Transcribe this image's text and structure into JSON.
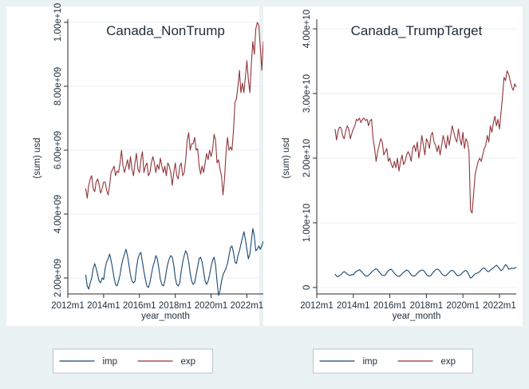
{
  "colors": {
    "imp": "#1a476f",
    "exp": "#90353b",
    "background": "#eaf2f3",
    "plot_background": "#ffffff",
    "grid": "#eaf2f3"
  },
  "legend": {
    "imp": "imp",
    "exp": "exp"
  },
  "chart_data": [
    {
      "type": "line",
      "title": "Canada_NonTrump",
      "xlabel": "year_month",
      "ylabel": "(sum) usd",
      "xlim": [
        "2012-01",
        "2022-12"
      ],
      "ylim": [
        1500000000.0,
        10000000000.0
      ],
      "x_ticks": [
        "2012-01",
        "2014-01",
        "2016-01",
        "2018-01",
        "2020-01",
        "2022-01"
      ],
      "x_tick_labels": [
        "2012m1",
        "2014m1",
        "2016m1",
        "2018m1",
        "2020m1",
        "2022m1"
      ],
      "y_ticks": [
        2000000000.0,
        4000000000.0,
        6000000000.0,
        8000000000.0,
        10000000000.0
      ],
      "y_tick_labels": [
        "2.00e+09",
        "4.00e+09",
        "6.00e+09",
        "8.00e+09",
        "1.00e+10"
      ],
      "grid": true,
      "legend_position": "bottom",
      "x_start": "2013-01",
      "x_step": "1 month",
      "series": [
        {
          "name": "imp",
          "values": [
            2100000000.0,
            1750000000.0,
            1650000000.0,
            1850000000.0,
            2000000000.0,
            2300000000.0,
            2450000000.0,
            2300000000.0,
            2100000000.0,
            1900000000.0,
            1850000000.0,
            2000000000.0,
            1950000000.0,
            2300000000.0,
            2500000000.0,
            2600000000.0,
            2750000000.0,
            2550000000.0,
            2300000000.0,
            2000000000.0,
            1800000000.0,
            1750000000.0,
            1900000000.0,
            2100000000.0,
            2400000000.0,
            2600000000.0,
            2750000000.0,
            2900000000.0,
            2700000000.0,
            2400000000.0,
            2100000000.0,
            1900000000.0,
            1850000000.0,
            1900000000.0,
            2300000000.0,
            2600000000.0,
            2750000000.0,
            2800000000.0,
            2500000000.0,
            2200000000.0,
            1950000000.0,
            1750000000.0,
            1700000000.0,
            1850000000.0,
            2100000000.0,
            2350000000.0,
            2500000000.0,
            2700000000.0,
            2600000000.0,
            2300000000.0,
            1950000000.0,
            1800000000.0,
            1750000000.0,
            1900000000.0,
            2200000000.0,
            2450000000.0,
            2600000000.0,
            2700000000.0,
            2650000000.0,
            2400000000.0,
            2000000000.0,
            1800000000.0,
            1750000000.0,
            1850000000.0,
            2200000000.0,
            2500000000.0,
            2700000000.0,
            2850000000.0,
            2750000000.0,
            2500000000.0,
            2150000000.0,
            1900000000.0,
            1800000000.0,
            1850000000.0,
            2100000000.0,
            2350000000.0,
            2600000000.0,
            2650000000.0,
            2500000000.0,
            2200000000.0,
            1900000000.0,
            1800000000.0,
            1900000000.0,
            2100000000.0,
            2350000000.0,
            2550000000.0,
            2650000000.0,
            2400000000.0,
            1900000000.0,
            1450000000.0,
            1600000000.0,
            1900000000.0,
            2100000000.0,
            2200000000.0,
            2300000000.0,
            2450000000.0,
            2700000000.0,
            2950000000.0,
            3000000000.0,
            2800000000.0,
            2500000000.0,
            2450000000.0,
            2700000000.0,
            2850000000.0,
            3050000000.0,
            3250000000.0,
            3450000000.0,
            3200000000.0,
            2900000000.0,
            2600000000.0,
            2750000000.0,
            3150000000.0,
            3550000000.0,
            3300000000.0,
            2850000000.0,
            2900000000.0,
            3000000000.0,
            2900000000.0,
            3000000000.0,
            3150000000.0
          ]
        },
        {
          "name": "exp",
          "values": [
            4800000000.0,
            4500000000.0,
            4900000000.0,
            5100000000.0,
            5200000000.0,
            4800000000.0,
            4700000000.0,
            5000000000.0,
            5100000000.0,
            4900000000.0,
            4650000000.0,
            4800000000.0,
            5000000000.0,
            5000000000.0,
            4750000000.0,
            4600000000.0,
            4900000000.0,
            5300000000.0,
            5400000000.0,
            5500000000.0,
            5200000000.0,
            5350000000.0,
            5300000000.0,
            5600000000.0,
            6000000000.0,
            5500000000.0,
            5300000000.0,
            5500000000.0,
            5700000000.0,
            5400000000.0,
            5800000000.0,
            5400000000.0,
            5200000000.0,
            5600000000.0,
            5900000000.0,
            5400000000.0,
            5300000000.0,
            5700000000.0,
            5950000000.0,
            5300000000.0,
            5500000000.0,
            5600000000.0,
            5200000000.0,
            5300000000.0,
            5600000000.0,
            5800000000.0,
            5600000000.0,
            5300000000.0,
            5550000000.0,
            5400000000.0,
            5750000000.0,
            5500000000.0,
            5300000000.0,
            5500000000.0,
            5200000000.0,
            5600000000.0,
            5500000000.0,
            5300000000.0,
            4900000000.0,
            5300000000.0,
            5600000000.0,
            5200000000.0,
            5100000000.0,
            5500000000.0,
            5600000000.0,
            5200000000.0,
            5300000000.0,
            5700000000.0,
            6300000000.0,
            6550000000.0,
            6000000000.0,
            6200000000.0,
            6200000000.0,
            6400000000.0,
            6000000000.0,
            6050000000.0,
            5500000000.0,
            5250000000.0,
            5500000000.0,
            5300000000.0,
            5600000000.0,
            5900000000.0,
            5700000000.0,
            6000000000.0,
            5800000000.0,
            6000000000.0,
            6500000000.0,
            6300000000.0,
            5600000000.0,
            5700000000.0,
            5400000000.0,
            5200000000.0,
            4600000000.0,
            5100000000.0,
            5900000000.0,
            6400000000.0,
            6000000000.0,
            6100000000.0,
            6000000000.0,
            6600000000.0,
            7500000000.0,
            7600000000.0,
            8000000000.0,
            8500000000.0,
            7800000000.0,
            8100000000.0,
            7800000000.0,
            8300000000.0,
            8800000000.0,
            8200000000.0,
            7800000000.0,
            8700000000.0,
            9400000000.0,
            9000000000.0,
            9800000000.0,
            10000000000.0,
            9900000000.0,
            9200000000.0,
            8500000000.0,
            9400000000.0
          ]
        }
      ]
    },
    {
      "type": "line",
      "title": "Canada_TrumpTarget",
      "xlabel": "year_month",
      "ylabel": "(sum) usd",
      "xlim": [
        "2012-01",
        "2022-12"
      ],
      "ylim": [
        -1000000000.0,
        41000000000.0
      ],
      "x_ticks": [
        "2012-01",
        "2014-01",
        "2016-01",
        "2018-01",
        "2020-01",
        "2022-01"
      ],
      "x_tick_labels": [
        "2012m1",
        "2014m1",
        "2016m1",
        "2018m1",
        "2020m1",
        "2022m1"
      ],
      "y_ticks": [
        0,
        10000000000.0,
        20000000000.0,
        30000000000.0,
        40000000000.0
      ],
      "y_tick_labels": [
        "0",
        "1.00e+10",
        "2.00e+10",
        "3.00e+10",
        "4.00e+10"
      ],
      "grid": true,
      "legend_position": "bottom",
      "x_start": "2013-01",
      "x_step": "1 month",
      "series": [
        {
          "name": "imp",
          "values": [
            2100000000.0,
            1750000000.0,
            1650000000.0,
            1850000000.0,
            2000000000.0,
            2300000000.0,
            2450000000.0,
            2300000000.0,
            2100000000.0,
            1900000000.0,
            1850000000.0,
            2000000000.0,
            1950000000.0,
            2300000000.0,
            2500000000.0,
            2600000000.0,
            2750000000.0,
            2550000000.0,
            2300000000.0,
            2000000000.0,
            1800000000.0,
            1750000000.0,
            1900000000.0,
            2100000000.0,
            2400000000.0,
            2600000000.0,
            2750000000.0,
            2900000000.0,
            2700000000.0,
            2400000000.0,
            2100000000.0,
            1900000000.0,
            1850000000.0,
            1900000000.0,
            2300000000.0,
            2600000000.0,
            2750000000.0,
            2800000000.0,
            2500000000.0,
            2200000000.0,
            1950000000.0,
            1750000000.0,
            1700000000.0,
            1850000000.0,
            2100000000.0,
            2350000000.0,
            2500000000.0,
            2700000000.0,
            2600000000.0,
            2300000000.0,
            1950000000.0,
            1800000000.0,
            1750000000.0,
            1900000000.0,
            2200000000.0,
            2450000000.0,
            2600000000.0,
            2700000000.0,
            2650000000.0,
            2400000000.0,
            2000000000.0,
            1800000000.0,
            1750000000.0,
            1850000000.0,
            2200000000.0,
            2500000000.0,
            2700000000.0,
            2850000000.0,
            2750000000.0,
            2500000000.0,
            2150000000.0,
            1900000000.0,
            1800000000.0,
            1850000000.0,
            2100000000.0,
            2350000000.0,
            2600000000.0,
            2650000000.0,
            2500000000.0,
            2200000000.0,
            1900000000.0,
            1800000000.0,
            1900000000.0,
            2100000000.0,
            2350000000.0,
            2550000000.0,
            2650000000.0,
            2400000000.0,
            1900000000.0,
            1450000000.0,
            1600000000.0,
            1900000000.0,
            2100000000.0,
            2200000000.0,
            2300000000.0,
            2450000000.0,
            2700000000.0,
            2950000000.0,
            3000000000.0,
            2800000000.0,
            2500000000.0,
            2450000000.0,
            2700000000.0,
            2850000000.0,
            3050000000.0,
            3250000000.0,
            3450000000.0,
            3200000000.0,
            2900000000.0,
            2600000000.0,
            2750000000.0,
            3150000000.0,
            3550000000.0,
            3300000000.0,
            2850000000.0,
            2900000000.0,
            3000000000.0,
            2900000000.0,
            3000000000.0,
            3150000000.0
          ]
        },
        {
          "name": "exp",
          "values": [
            24500000000.0,
            22800000000.0,
            24200000000.0,
            24800000000.0,
            24700000000.0,
            23500000000.0,
            23000000000.0,
            24200000000.0,
            25000000000.0,
            24500000000.0,
            23000000000.0,
            23800000000.0,
            24500000000.0,
            25000000000.0,
            26000000000.0,
            25800000000.0,
            26200000000.0,
            25500000000.0,
            26000000000.0,
            26200000000.0,
            25800000000.0,
            26000000000.0,
            25000000000.0,
            25800000000.0,
            26000000000.0,
            23000000000.0,
            21500000000.0,
            19500000000.0,
            21000000000.0,
            22000000000.0,
            23000000000.0,
            22500000000.0,
            20500000000.0,
            21000000000.0,
            21500000000.0,
            19500000000.0,
            20000000000.0,
            19000000000.0,
            18500000000.0,
            19500000000.0,
            18500000000.0,
            20000000000.0,
            18000000000.0,
            19500000000.0,
            20500000000.0,
            19000000000.0,
            19500000000.0,
            20500000000.0,
            21000000000.0,
            20500000000.0,
            19500000000.0,
            21500000000.0,
            22000000000.0,
            21000000000.0,
            22500000000.0,
            20000000000.0,
            21500000000.0,
            23500000000.0,
            22000000000.0,
            20500000000.0,
            23000000000.0,
            22500000000.0,
            21500000000.0,
            23500000000.0,
            24000000000.0,
            22500000000.0,
            22000000000.0,
            21000000000.0,
            22000000000.0,
            20500000000.0,
            22000000000.0,
            23500000000.0,
            22500000000.0,
            21500000000.0,
            23500000000.0,
            22000000000.0,
            23500000000.0,
            25000000000.0,
            24000000000.0,
            23000000000.0,
            22500000000.0,
            24500000000.0,
            23000000000.0,
            22000000000.0,
            24000000000.0,
            21500000000.0,
            23000000000.0,
            22500000000.0,
            21000000000.0,
            12000000000.0,
            11500000000.0,
            14500000000.0,
            17500000000.0,
            18500000000.0,
            19500000000.0,
            20000000000.0,
            19500000000.0,
            20500000000.0,
            21500000000.0,
            22000000000.0,
            23500000000.0,
            22500000000.0,
            25000000000.0,
            24000000000.0,
            25500000000.0,
            26500000000.0,
            25000000000.0,
            26000000000.0,
            24500000000.0,
            27000000000.0,
            29500000000.0,
            32500000000.0,
            32000000000.0,
            33500000000.0,
            33000000000.0,
            32000000000.0,
            31000000000.0,
            30500000000.0,
            31500000000.0,
            31000000000.0
          ]
        }
      ]
    }
  ]
}
